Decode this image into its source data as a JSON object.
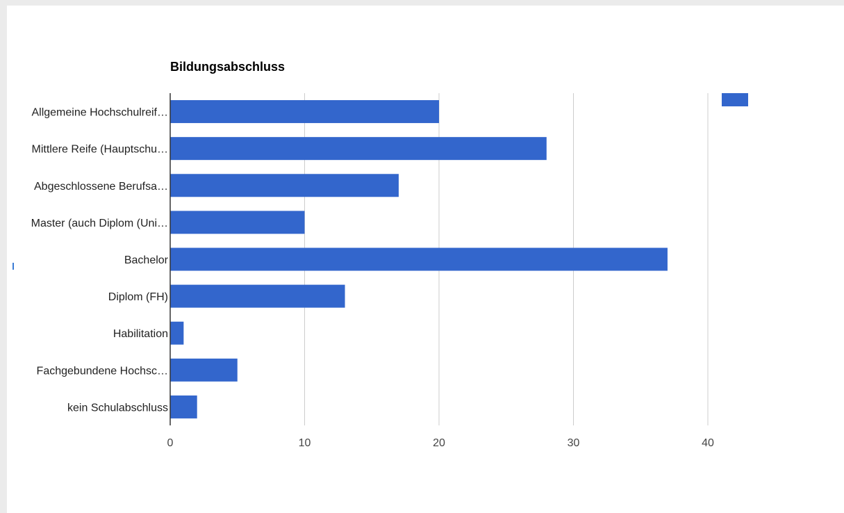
{
  "chart_data": {
    "type": "bar",
    "orientation": "horizontal",
    "title": "Bildungsabschluss",
    "categories": [
      "Allgemeine Hochschulreif…",
      "Mittlere Reife (Hauptschu…",
      "Abgeschlossene Berufsa…",
      "Master (auch Diplom (Uni…",
      "Bachelor",
      "Diplom (FH)",
      "Habilitation",
      "Fachgebundene Hochsc…",
      "kein Schulabschluss"
    ],
    "values": [
      20,
      28,
      17,
      10,
      37,
      13,
      1,
      5,
      2
    ],
    "xticks": [
      "0",
      "10",
      "20",
      "30",
      "40"
    ],
    "xlim": [
      0,
      50
    ],
    "grid": true,
    "legend": "top-right",
    "bar_color": "#3366cc",
    "grid_color": "#cccccc",
    "axis_color": "#333333"
  }
}
